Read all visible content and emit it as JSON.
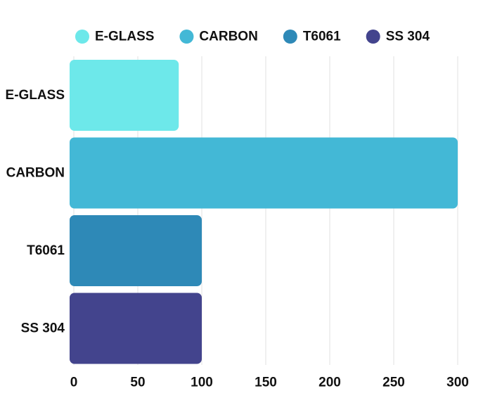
{
  "chart_data": {
    "type": "bar",
    "orientation": "horizontal",
    "categories": [
      "E-GLASS",
      "CARBON",
      "T6061",
      "SS 304"
    ],
    "values": [
      82,
      300,
      100,
      100
    ],
    "colors": [
      "#6de8ea",
      "#43b8d6",
      "#2e89b7",
      "#43448d"
    ],
    "legend": {
      "placement": "top-center",
      "entries": [
        "E-GLASS",
        "CARBON",
        "T6061",
        "SS 304"
      ]
    },
    "title": "",
    "xlabel": "",
    "ylabel": "",
    "xlim": [
      0,
      300
    ],
    "xticks": [
      0,
      50,
      100,
      150,
      200,
      250,
      300
    ],
    "grid": true
  }
}
